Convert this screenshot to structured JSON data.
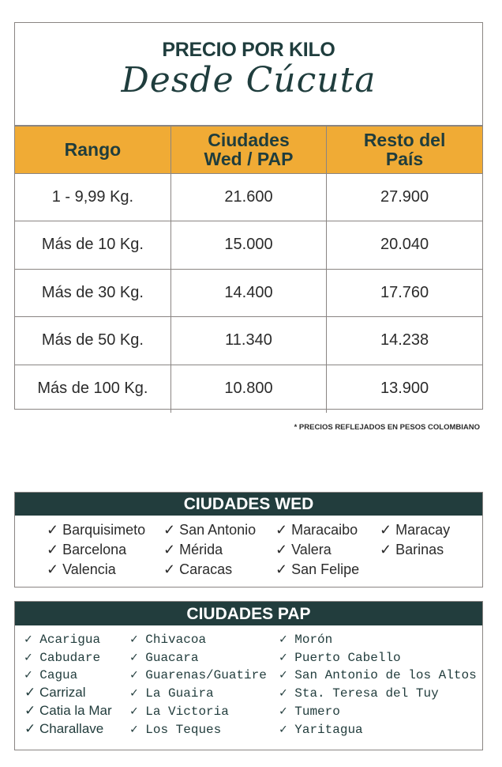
{
  "title": {
    "line1": "PRECIO POR KILO",
    "line2": "Desde Cúcuta"
  },
  "table": {
    "headers": [
      "Rango",
      "Ciudades Wed / PAP",
      "Resto del País"
    ],
    "rows": [
      [
        "1 - 9,99 Kg.",
        "21.600",
        "27.900"
      ],
      [
        "Más de 10 Kg.",
        "15.000",
        "20.040"
      ],
      [
        "Más de 30 Kg.",
        "14.400",
        "17.760"
      ],
      [
        "Más de 50 Kg.",
        "11.340",
        "14.238"
      ],
      [
        "Más de 100 Kg.",
        "10.800",
        "13.900"
      ]
    ]
  },
  "note": "* PRECIOS REFLEJADOS EN PESOS COLOMBIANO",
  "wed": {
    "title": "CIUDADES WED",
    "columns": [
      [
        "✓ Barquisimeto",
        "✓ Barcelona",
        "✓ Valencia"
      ],
      [
        "✓ San Antonio",
        "✓ Mérida",
        "✓ Caracas"
      ],
      [
        "✓ Maracaibo",
        "✓ Valera",
        "✓ San Felipe"
      ],
      [
        "✓ Maracay",
        "✓ Barinas"
      ]
    ]
  },
  "pap": {
    "title": "CIUDADES PAP",
    "columns": [
      [
        "✓ Acarigua",
        "✓ Cabudare",
        "✓ Cagua",
        "✓ Carrizal",
        "✓ Catia la Mar",
        "✓ Charallave"
      ],
      [
        "✓ Chivacoa",
        "✓ Guacara",
        "✓ Guarenas/Guatire",
        "✓ La Guaira",
        "✓ La Victoria",
        "✓ Los Teques"
      ],
      [
        "✓ Morón",
        "✓ Puerto Cabello",
        "✓ San Antonio de los Altos",
        "✓ Sta. Teresa del Tuy",
        "✓ Tumero",
        "✓ Yaritagua"
      ]
    ]
  }
}
